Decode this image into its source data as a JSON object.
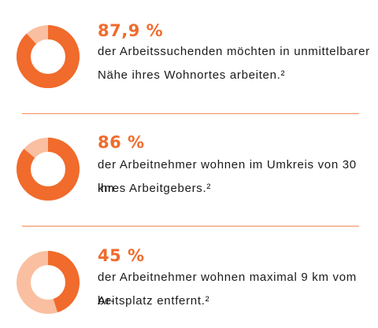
{
  "colors": {
    "accent": "#f06b2c",
    "ring_track": "#f9bfa0",
    "divider": "#f28a55"
  },
  "stats": [
    {
      "percent_label": "87,9 %",
      "value": 87.9,
      "line1": "der Arbeitssuchenden möchten in unmittelbarer",
      "line2": "Nähe ihres Wohnortes arbeiten.²"
    },
    {
      "percent_label": "86 %",
      "value": 86,
      "line1": "der Arbeitnehmer wohnen im Umkreis von 30 km",
      "line2": "ihres Arbeitgebers.²"
    },
    {
      "percent_label": "45 %",
      "value": 45,
      "line1": "der Arbeitnehmer wohnen maximal 9 km vom Ar-",
      "line2": "beitsplatz entfernt.²"
    }
  ]
}
